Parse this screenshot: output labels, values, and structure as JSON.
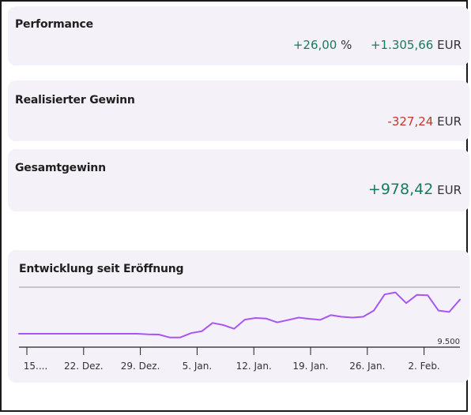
{
  "performance": {
    "title": "Performance",
    "percent_value": "+26,00",
    "percent_unit": "%",
    "amount_value": "+1.305,66",
    "amount_unit": "EUR"
  },
  "realized_gain": {
    "title": "Realisierter Gewinn",
    "value": "-327,24",
    "unit": "EUR"
  },
  "total_gain": {
    "title": "Gesamtgewinn",
    "value": "+978,42",
    "unit": "EUR"
  },
  "chart": {
    "title": "Entwicklung seit Eröffnung",
    "line_color": "#a855f7"
  },
  "chart_data": {
    "type": "line",
    "title": "Entwicklung seit Eröffnung",
    "x_tick_labels": [
      "15....",
      "22. Dez.",
      "29. Dez.",
      "5. Jan.",
      "12. Jan.",
      "19. Jan.",
      "26. Jan.",
      "2. Feb."
    ],
    "reference_label": "9.500",
    "reference_value": 9500,
    "ylim": [
      9500,
      10950
    ],
    "series": [
      {
        "values": [
          9825,
          9825,
          9825,
          9825,
          9825,
          9825,
          9825,
          9825,
          9825,
          9825,
          9825,
          9825,
          9810,
          9805,
          9735,
          9735,
          9840,
          9885,
          10085,
          10035,
          9945,
          10165,
          10205,
          10190,
          10100,
          10155,
          10215,
          10185,
          10160,
          10275,
          10235,
          10215,
          10235,
          10385,
          10775,
          10825,
          10565,
          10765,
          10755,
          10385,
          10350,
          10650
        ]
      }
    ]
  }
}
